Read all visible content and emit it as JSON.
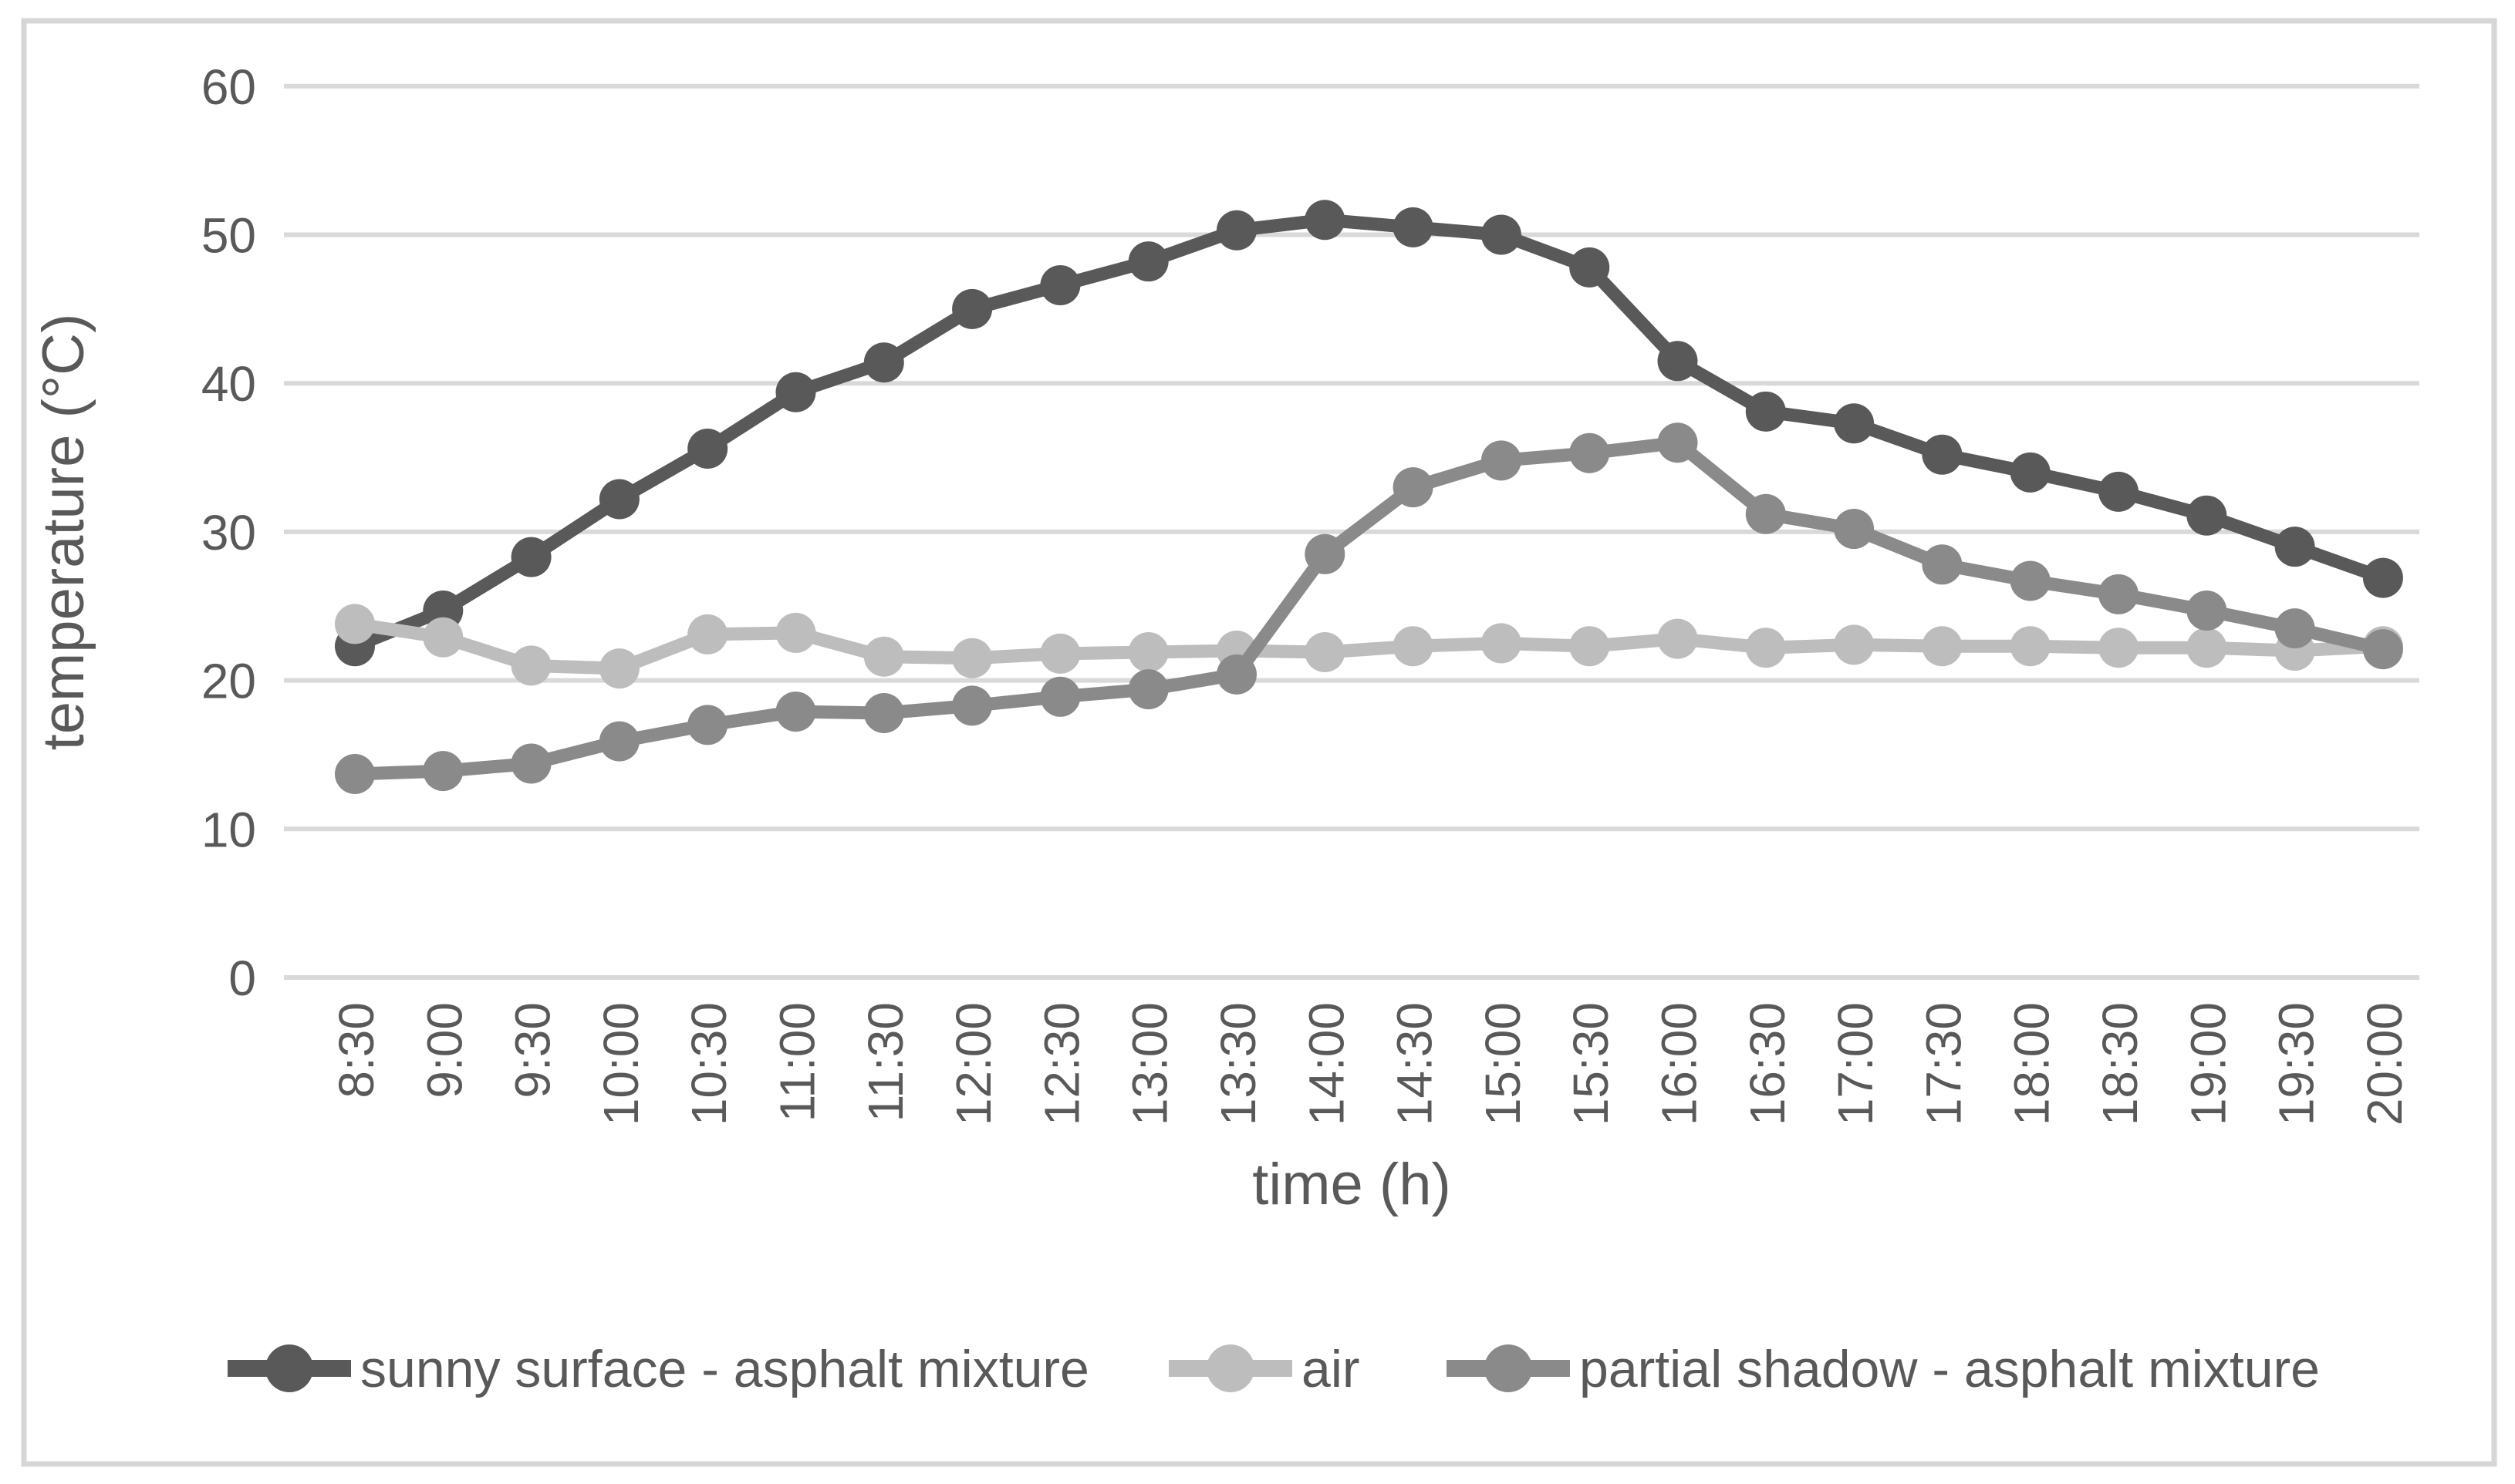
{
  "chart_data": {
    "type": "line",
    "title": "",
    "xlabel": "time (h)",
    "ylabel": "temperature (°C)",
    "categories": [
      "8:30",
      "9:00",
      "9:30",
      "10:00",
      "10:30",
      "11:00",
      "11:30",
      "12:00",
      "12:30",
      "13:00",
      "13:30",
      "14:00",
      "14:30",
      "15:00",
      "15:30",
      "16:00",
      "16:30",
      "17:00",
      "17:30",
      "18:00",
      "18:30",
      "19:00",
      "19:30",
      "20:00"
    ],
    "yticks": [
      0,
      10,
      20,
      30,
      40,
      50,
      60
    ],
    "ylim": [
      0,
      60
    ],
    "grid": "horizontal-only",
    "legend_position": "bottom",
    "series": [
      {
        "name": "sunny surface - asphalt mixture",
        "color": "#595959",
        "values": [
          22.3,
          24.7,
          28.3,
          32.2,
          35.6,
          39.4,
          41.4,
          45.0,
          46.6,
          48.2,
          50.3,
          51.0,
          50.5,
          50.0,
          47.8,
          41.5,
          38.1,
          37.3,
          35.2,
          34.0,
          32.7,
          31.1,
          29.0,
          26.9
        ]
      },
      {
        "name": "air",
        "color": "#bdbdbd",
        "values": [
          23.8,
          22.9,
          21.0,
          20.8,
          23.1,
          23.2,
          21.6,
          21.5,
          21.8,
          21.9,
          22.0,
          21.9,
          22.3,
          22.5,
          22.3,
          22.8,
          22.2,
          22.4,
          22.3,
          22.3,
          22.2,
          22.2,
          22.0,
          22.3
        ]
      },
      {
        "name": "partial shadow - asphalt mixture",
        "color": "#8a8a8a",
        "values": [
          13.7,
          13.9,
          14.4,
          15.9,
          17.0,
          17.9,
          17.8,
          18.3,
          18.9,
          19.4,
          20.4,
          28.5,
          33.0,
          34.8,
          35.3,
          36.0,
          31.2,
          30.2,
          27.8,
          26.7,
          25.8,
          24.7,
          23.5,
          22.1
        ]
      }
    ],
    "colors": {
      "gridline": "#d9d9d9",
      "frame": "#d6d6d6",
      "text": "#595959",
      "background": "#ffffff"
    }
  }
}
